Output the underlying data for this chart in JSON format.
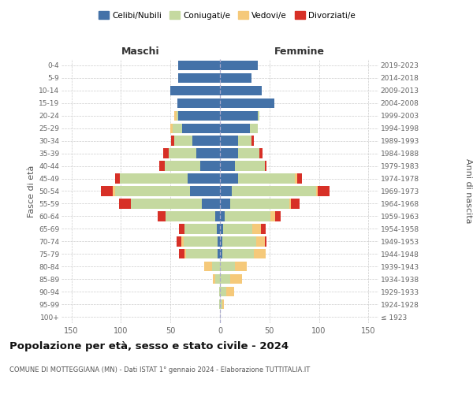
{
  "age_groups": [
    "100+",
    "95-99",
    "90-94",
    "85-89",
    "80-84",
    "75-79",
    "70-74",
    "65-69",
    "60-64",
    "55-59",
    "50-54",
    "45-49",
    "40-44",
    "35-39",
    "30-34",
    "25-29",
    "20-24",
    "15-19",
    "10-14",
    "5-9",
    "0-4"
  ],
  "birth_years": [
    "≤ 1923",
    "1924-1928",
    "1929-1933",
    "1934-1938",
    "1939-1943",
    "1944-1948",
    "1949-1953",
    "1954-1958",
    "1959-1963",
    "1964-1968",
    "1969-1973",
    "1974-1978",
    "1979-1983",
    "1984-1988",
    "1989-1993",
    "1994-1998",
    "1999-2003",
    "2004-2008",
    "2009-2013",
    "2014-2018",
    "2019-2023"
  ],
  "colors": {
    "celibi": "#4472a8",
    "coniugati": "#c5d9a0",
    "vedovi": "#f5c97a",
    "divorziati": "#d73027"
  },
  "males": {
    "celibi": [
      0,
      0,
      0,
      0,
      0,
      2,
      2,
      3,
      5,
      18,
      30,
      33,
      20,
      24,
      28,
      38,
      42,
      43,
      50,
      42,
      42
    ],
    "coniugati": [
      0,
      1,
      1,
      5,
      8,
      32,
      35,
      33,
      50,
      72,
      76,
      68,
      36,
      28,
      18,
      10,
      2,
      0,
      0,
      0,
      0
    ],
    "vedovi": [
      0,
      0,
      0,
      2,
      8,
      2,
      2,
      0,
      0,
      0,
      2,
      0,
      0,
      0,
      0,
      2,
      2,
      0,
      0,
      0,
      0
    ],
    "divorziati": [
      0,
      0,
      0,
      0,
      0,
      5,
      5,
      5,
      8,
      12,
      12,
      5,
      5,
      5,
      3,
      0,
      0,
      0,
      0,
      0,
      0
    ]
  },
  "females": {
    "nubili": [
      0,
      0,
      0,
      0,
      0,
      2,
      2,
      3,
      5,
      10,
      12,
      18,
      15,
      18,
      18,
      30,
      38,
      55,
      42,
      32,
      38
    ],
    "coniugate": [
      0,
      2,
      6,
      10,
      15,
      32,
      35,
      30,
      46,
      60,
      85,
      58,
      30,
      22,
      14,
      8,
      2,
      0,
      0,
      0,
      0
    ],
    "vedove": [
      0,
      2,
      8,
      12,
      12,
      12,
      8,
      8,
      5,
      2,
      2,
      2,
      0,
      0,
      0,
      0,
      0,
      0,
      0,
      0,
      0
    ],
    "divorziate": [
      0,
      0,
      0,
      0,
      0,
      0,
      2,
      5,
      5,
      8,
      12,
      5,
      2,
      3,
      2,
      0,
      0,
      0,
      0,
      0,
      0
    ]
  },
  "xlim": 160,
  "title": "Popolazione per età, sesso e stato civile - 2024",
  "subtitle": "COMUNE DI MOTTEGGIANA (MN) - Dati ISTAT 1° gennaio 2024 - Elaborazione TUTTITALIA.IT",
  "ylabel_left": "Fasce di età",
  "ylabel_right": "Anni di nascita",
  "xlabel_left": "Maschi",
  "xlabel_right": "Femmine",
  "bg_color": "#ffffff",
  "grid_color": "#cccccc",
  "legend_labels": [
    "Celibi/Nubili",
    "Coniugati/e",
    "Vedovi/e",
    "Divorziati/e"
  ]
}
